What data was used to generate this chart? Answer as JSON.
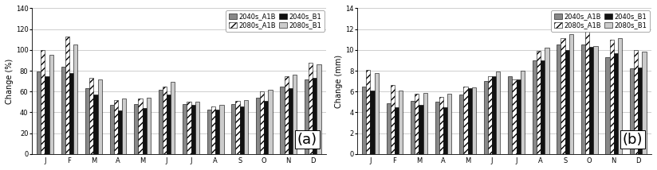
{
  "months": [
    "J",
    "F",
    "M",
    "A",
    "M",
    "J",
    "J",
    "A",
    "S",
    "O",
    "N",
    "D"
  ],
  "chart_a": {
    "title": "(a)",
    "ylabel": "Change (%)",
    "ylim": [
      0,
      140
    ],
    "yticks": [
      0.0,
      20.0,
      40.0,
      60.0,
      80.0,
      100.0,
      120.0,
      140.0
    ],
    "series": {
      "2040s_A1B": [
        79,
        84,
        63,
        47,
        48,
        62,
        48,
        43,
        48,
        54,
        65,
        72
      ],
      "2080s_A1B": [
        100,
        113,
        73,
        52,
        53,
        65,
        50,
        46,
        51,
        60,
        75,
        88
      ],
      "2040s_B1": [
        75,
        78,
        57,
        42,
        44,
        57,
        47,
        43,
        46,
        51,
        63,
        73
      ],
      "2080s_B1": [
        95,
        105,
        72,
        53,
        54,
        69,
        50,
        47,
        52,
        62,
        76,
        86
      ]
    }
  },
  "chart_b": {
    "title": "(b)",
    "ylabel": "Change (mm)",
    "ylim": [
      0,
      14
    ],
    "yticks": [
      0.0,
      2.0,
      4.0,
      6.0,
      8.0,
      10.0,
      12.0,
      14.0
    ],
    "series": {
      "2040s_A1B": [
        6.5,
        4.9,
        5.1,
        5.0,
        5.7,
        7.0,
        7.5,
        9.0,
        10.5,
        10.5,
        9.3,
        8.2
      ],
      "2080s_A1B": [
        8.1,
        6.6,
        5.8,
        5.5,
        6.5,
        7.5,
        7.2,
        9.9,
        11.1,
        11.8,
        11.0,
        10.0
      ],
      "2040s_B1": [
        6.1,
        4.5,
        4.7,
        4.5,
        6.3,
        7.5,
        7.2,
        9.0,
        10.0,
        10.3,
        9.7,
        8.3
      ],
      "2080s_B1": [
        7.8,
        6.1,
        5.9,
        5.8,
        6.4,
        7.9,
        8.0,
        10.2,
        11.5,
        10.4,
        11.1,
        9.8
      ]
    }
  },
  "series_order": [
    "2040s_A1B",
    "2080s_A1B",
    "2040s_B1",
    "2080s_B1"
  ],
  "colors": {
    "2040s_A1B": "#888888",
    "2080s_A1B": "#ffffff",
    "2040s_B1": "#111111",
    "2080s_B1": "#cccccc"
  },
  "hatch": {
    "2040s_A1B": "",
    "2080s_A1B": "////",
    "2040s_B1": "",
    "2080s_B1": ""
  },
  "edgecolor": "#000000",
  "bar_width": 0.17,
  "label_fontsize": 7,
  "tick_fontsize": 6,
  "legend_fontsize": 6,
  "annot_fontsize": 13
}
